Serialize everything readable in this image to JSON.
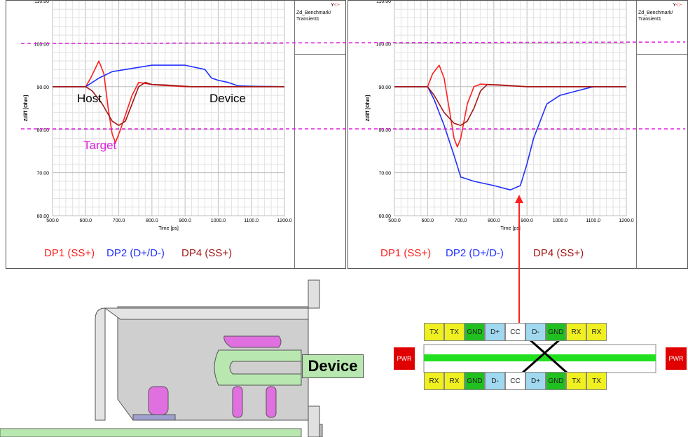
{
  "charts": {
    "left": {
      "legend_y": "Y",
      "legend_t": [
        "Zd_Benchmark/",
        "Transient1"
      ]
    },
    "right": {
      "legend_y": "Y",
      "legend_t": [
        "Zd_Benchmark/",
        "Transient1"
      ]
    }
  },
  "chart_data": [
    {
      "type": "line",
      "title": "",
      "xlabel": "Time [ps]",
      "ylabel": "Zdiff [Ohm]",
      "xlim": [
        500,
        1200
      ],
      "ylim": [
        60,
        110
      ],
      "x_ticks": [
        "500.0",
        "600.0",
        "700.0",
        "800.0",
        "900.0",
        "1000.0",
        "1100.0",
        "1200.0"
      ],
      "y_ticks": [
        "60.00",
        "70.00",
        "80.00",
        "90.00",
        "100.00",
        "110.00"
      ],
      "reference_lines": [
        100,
        80
      ],
      "annotations": [
        "Host",
        "Device",
        "Target"
      ],
      "series": [
        {
          "name": "DP1 (SS+)",
          "color": "#ff2020",
          "points": [
            [
              500,
              90
            ],
            [
              600,
              90
            ],
            [
              615,
              92
            ],
            [
              640,
              96
            ],
            [
              655,
              93
            ],
            [
              668,
              85
            ],
            [
              680,
              79
            ],
            [
              690,
              77
            ],
            [
              705,
              80
            ],
            [
              740,
              88
            ],
            [
              760,
              91
            ],
            [
              800,
              90.5
            ],
            [
              830,
              90.3
            ],
            [
              860,
              90.2
            ],
            [
              900,
              90
            ],
            [
              1200,
              90
            ]
          ]
        },
        {
          "name": "DP2 (D+/D-)",
          "color": "#2030ff",
          "points": [
            [
              500,
              90
            ],
            [
              600,
              90
            ],
            [
              640,
              92
            ],
            [
              680,
              93.5
            ],
            [
              720,
              94
            ],
            [
              760,
              94.5
            ],
            [
              800,
              95
            ],
            [
              900,
              95
            ],
            [
              960,
              94
            ],
            [
              980,
              92
            ],
            [
              1000,
              91.5
            ],
            [
              1030,
              91
            ],
            [
              1060,
              90.2
            ],
            [
              1100,
              90.1
            ],
            [
              1200,
              90
            ]
          ]
        },
        {
          "name": "DP4 (SS+)",
          "color": "#a01818",
          "points": [
            [
              500,
              90
            ],
            [
              600,
              90
            ],
            [
              620,
              89
            ],
            [
              650,
              86
            ],
            [
              680,
              82
            ],
            [
              700,
              81
            ],
            [
              720,
              82
            ],
            [
              740,
              86
            ],
            [
              760,
              90
            ],
            [
              780,
              91
            ],
            [
              800,
              90.5
            ],
            [
              840,
              90.4
            ],
            [
              880,
              90.2
            ],
            [
              920,
              90
            ],
            [
              1200,
              90
            ]
          ]
        }
      ]
    },
    {
      "type": "line",
      "title": "",
      "xlabel": "Time [ps]",
      "ylabel": "Zdiff [Ohm]",
      "xlim": [
        500,
        1200
      ],
      "ylim": [
        60,
        110
      ],
      "x_ticks": [
        "500.0",
        "600.0",
        "700.0",
        "800.0",
        "900.0",
        "1000.0",
        "1100.0",
        "1200.0"
      ],
      "y_ticks": [
        "60.00",
        "70.00",
        "80.00",
        "90.00",
        "100.00",
        "110.00"
      ],
      "reference_lines": [
        100,
        80
      ],
      "annotations": [],
      "series": [
        {
          "name": "DP1 (SS+)",
          "color": "#ff2020",
          "points": [
            [
              500,
              90
            ],
            [
              600,
              90
            ],
            [
              615,
              93
            ],
            [
              635,
              95
            ],
            [
              650,
              92
            ],
            [
              665,
              85
            ],
            [
              680,
              78
            ],
            [
              690,
              76
            ],
            [
              700,
              78
            ],
            [
              720,
              86
            ],
            [
              740,
              90
            ],
            [
              760,
              90.6
            ],
            [
              800,
              90.4
            ],
            [
              850,
              90.2
            ],
            [
              900,
              90
            ],
            [
              1200,
              90
            ]
          ]
        },
        {
          "name": "DP2 (D+/D-)",
          "color": "#2030ff",
          "points": [
            [
              500,
              90
            ],
            [
              600,
              90
            ],
            [
              620,
              87
            ],
            [
              650,
              81
            ],
            [
              680,
              74
            ],
            [
              700,
              69
            ],
            [
              740,
              68
            ],
            [
              800,
              67
            ],
            [
              850,
              66
            ],
            [
              880,
              67
            ],
            [
              900,
              72
            ],
            [
              920,
              78
            ],
            [
              960,
              86
            ],
            [
              1000,
              88
            ],
            [
              1050,
              89
            ],
            [
              1100,
              90
            ],
            [
              1200,
              90
            ]
          ]
        },
        {
          "name": "DP4 (SS+)",
          "color": "#a01818",
          "points": [
            [
              500,
              90
            ],
            [
              600,
              90
            ],
            [
              620,
              88
            ],
            [
              650,
              84
            ],
            [
              680,
              81.5
            ],
            [
              700,
              81
            ],
            [
              720,
              82
            ],
            [
              740,
              85
            ],
            [
              760,
              89
            ],
            [
              780,
              90.5
            ],
            [
              820,
              90.4
            ],
            [
              860,
              90.2
            ],
            [
              900,
              90
            ],
            [
              1200,
              90
            ]
          ]
        }
      ]
    }
  ],
  "pins": {
    "top": [
      "TX",
      "TX",
      "GND",
      "D+",
      "CC",
      "D-",
      "GND",
      "RX",
      "RX"
    ],
    "bottom": [
      "RX",
      "RX",
      "GND",
      "D-",
      "CC",
      "D+",
      "GND",
      "TX",
      "TX"
    ],
    "pwr_left": "PWR",
    "pwr_right": "PWR"
  },
  "device_label": "Device",
  "colors": {
    "dp1": "#ff2020",
    "dp2": "#2030ff",
    "dp4": "#a01818",
    "target": "#e020e0",
    "gnd": "#20c020",
    "tx": "#f0f020",
    "diff": "#a0d8f0",
    "pwr": "#e00000"
  }
}
